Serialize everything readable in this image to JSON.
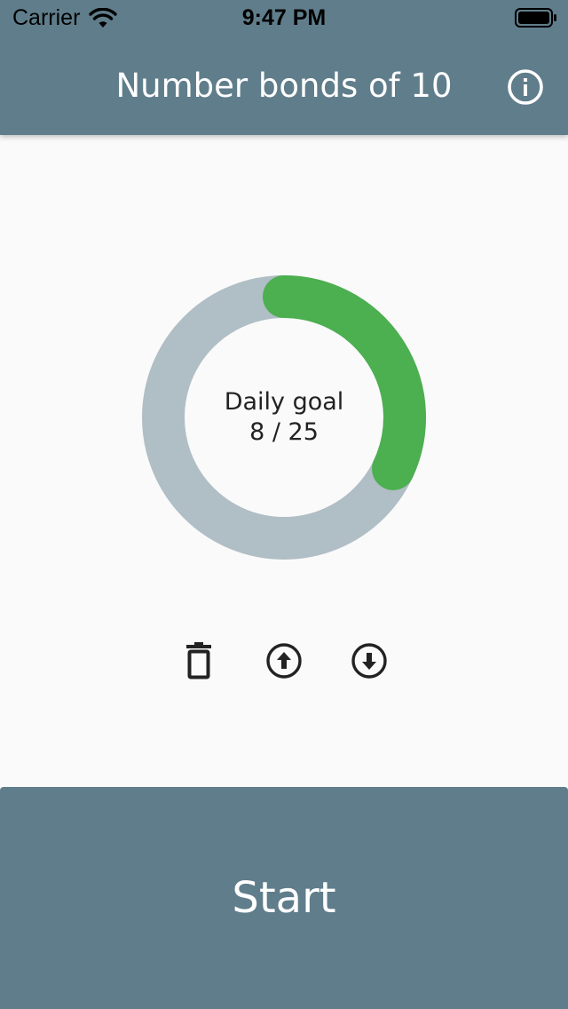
{
  "status_bar": {
    "carrier": "Carrier",
    "time": "9:47 PM",
    "wifi_icon": "wifi-icon",
    "battery_icon": "battery-full-icon"
  },
  "header": {
    "title": "Number bonds of 10",
    "info_icon": "info-circle-icon"
  },
  "daily_goal": {
    "label": "Daily goal",
    "progress_text": "8 / 25",
    "current": 8,
    "target": 25
  },
  "actions": [
    {
      "icon": "trash-icon"
    },
    {
      "icon": "upload-circle-icon"
    },
    {
      "icon": "download-circle-icon"
    }
  ],
  "start": {
    "label": "Start"
  },
  "colors": {
    "primary": "#607d8b",
    "ring_track": "#b0bec5",
    "ring_progress": "#4caf50",
    "background": "#fafafa"
  }
}
